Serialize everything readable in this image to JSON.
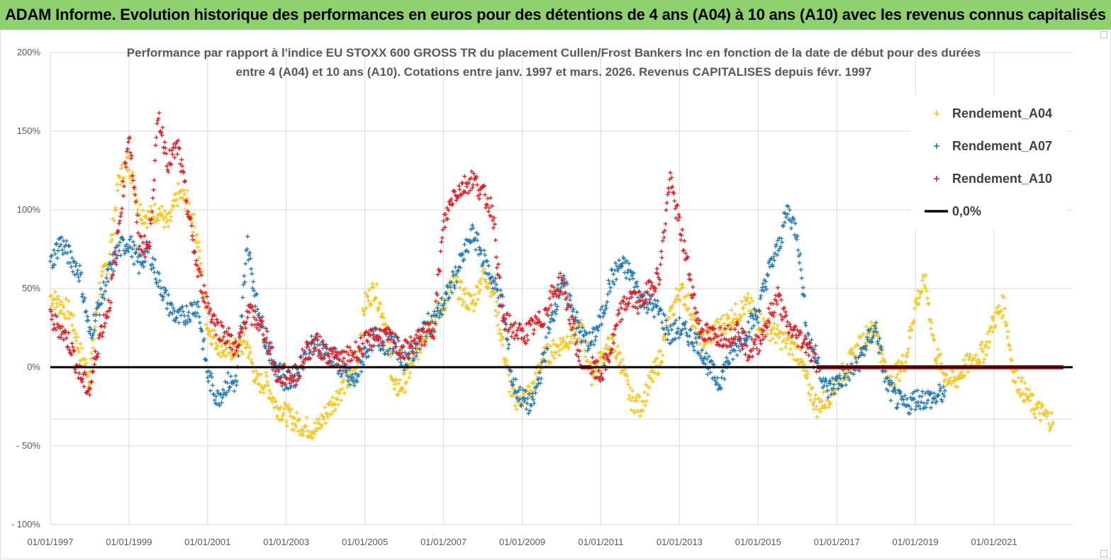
{
  "banner": {
    "title": "ADAM Informe. Evolution historique des performances en euros pour des détentions de 4 ans (A04) à 10 ans (A10) avec les revenus connus capitalisés"
  },
  "colors": {
    "banner_bg": "#8fd16f",
    "a04": "#f5c518",
    "a07": "#1f77b4",
    "a10": "#e8191e",
    "zero": "#000000",
    "grid": "#d9d9d9"
  },
  "chart_data": {
    "type": "scatter",
    "title_lines": [
      "Performance par rapport à l'indice EU STOXX 600 GROSS TR  du placement Cullen/Frost Bankers Inc en fonction de la date de début pour des durées",
      "entre 4 (A04) et 10 ans (A10). Cotations entre janv. 1997 et mars. 2026. Revenus CAPITALISES depuis févr. 1997"
    ],
    "ylim": [
      -100,
      200
    ],
    "y_ticks": [
      200,
      150,
      100,
      50,
      0,
      -50,
      -100
    ],
    "y_tick_labels": [
      "200%",
      "150%",
      "100%",
      "50%",
      "0%",
      "- 50%",
      "- 100%"
    ],
    "x_start_year": 1997.0,
    "x_end_year": 2023.0,
    "x_ticks": [
      1997,
      1999,
      2001,
      2003,
      2005,
      2007,
      2009,
      2011,
      2013,
      2015,
      2017,
      2019,
      2021
    ],
    "x_tick_labels": [
      "01/01/1997",
      "01/01/1999",
      "01/01/2001",
      "01/01/2003",
      "01/01/2005",
      "01/01/2007",
      "01/01/2009",
      "01/01/2011",
      "01/01/2013",
      "01/01/2015",
      "01/01/2017",
      "01/01/2019",
      "01/01/2021"
    ],
    "legend": [
      {
        "label": "Rendement_A04",
        "key": "a04"
      },
      {
        "label": "Rendement_A07",
        "key": "a07"
      },
      {
        "label": "Rendement_A10",
        "key": "a10"
      },
      {
        "label": "0,0%",
        "key": "zero"
      }
    ],
    "series": [
      {
        "name": "Rendement_A04",
        "key": "a04",
        "x": [
          1997.0,
          1997.25,
          1997.5,
          1997.75,
          1998.0,
          1998.25,
          1998.5,
          1998.75,
          1999.0,
          1999.25,
          1999.5,
          1999.75,
          2000.0,
          2000.25,
          2000.5,
          2000.75,
          2001.0,
          2001.25,
          2001.5,
          2001.75,
          2002.0,
          2002.25,
          2002.5,
          2002.75,
          2003.0,
          2003.25,
          2003.5,
          2003.75,
          2004.0,
          2004.25,
          2004.5,
          2004.75,
          2005.0,
          2005.25,
          2005.5,
          2005.75,
          2006.0,
          2006.25,
          2006.5,
          2006.75,
          2007.0,
          2007.25,
          2007.5,
          2007.75,
          2008.0,
          2008.25,
          2008.5,
          2008.75,
          2009.0,
          2009.25,
          2009.5,
          2009.75,
          2010.0,
          2010.25,
          2010.5,
          2010.75,
          2011.0,
          2011.25,
          2011.5,
          2011.75,
          2012.0,
          2012.25,
          2012.5,
          2012.75,
          2013.0,
          2013.25,
          2013.5,
          2013.75,
          2014.0,
          2014.25,
          2014.5,
          2014.75,
          2015.0,
          2015.25,
          2015.5,
          2015.75,
          2016.0,
          2016.25,
          2016.5,
          2016.75,
          2017.0,
          2017.25,
          2017.5,
          2017.75,
          2018.0,
          2018.25,
          2018.5,
          2018.75,
          2019.0,
          2019.25,
          2019.5,
          2019.75,
          2020.0,
          2020.25,
          2020.5,
          2020.75,
          2021.0,
          2021.25,
          2021.5,
          2021.75,
          2022.0,
          2022.25,
          2022.5
        ],
        "y": [
          45,
          40,
          35,
          10,
          -5,
          50,
          70,
          120,
          130,
          100,
          95,
          100,
          90,
          110,
          105,
          80,
          25,
          15,
          10,
          12,
          15,
          -10,
          -10,
          -25,
          -30,
          -35,
          -38,
          -40,
          -30,
          -20,
          -10,
          -5,
          40,
          50,
          30,
          -15,
          -10,
          5,
          20,
          30,
          40,
          55,
          45,
          40,
          60,
          50,
          15,
          -20,
          -20,
          -15,
          5,
          10,
          15,
          20,
          25,
          -5,
          5,
          15,
          5,
          -20,
          -25,
          -10,
          5,
          30,
          50,
          40,
          15,
          20,
          25,
          30,
          35,
          40,
          30,
          25,
          20,
          15,
          10,
          -10,
          -25,
          -20,
          -10,
          0,
          10,
          20,
          25,
          -5,
          -5,
          5,
          40,
          55,
          10,
          -5,
          -10,
          0,
          5,
          10,
          30,
          40,
          -5,
          -15,
          -25,
          -30,
          -35
        ]
      },
      {
        "name": "Rendement_A07",
        "key": "a07",
        "x": [
          1997.0,
          1997.25,
          1997.5,
          1997.75,
          1998.0,
          1998.25,
          1998.5,
          1998.75,
          1999.0,
          1999.25,
          1999.5,
          1999.75,
          2000.0,
          2000.25,
          2000.5,
          2000.75,
          2001.0,
          2001.25,
          2001.5,
          2001.75,
          2002.0,
          2002.25,
          2002.5,
          2002.75,
          2003.0,
          2003.25,
          2003.5,
          2003.75,
          2004.0,
          2004.25,
          2004.5,
          2004.75,
          2005.0,
          2005.25,
          2005.5,
          2005.75,
          2006.0,
          2006.25,
          2006.5,
          2006.75,
          2007.0,
          2007.25,
          2007.5,
          2007.75,
          2008.0,
          2008.25,
          2008.5,
          2008.75,
          2009.0,
          2009.25,
          2009.5,
          2009.75,
          2010.0,
          2010.25,
          2010.5,
          2010.75,
          2011.0,
          2011.25,
          2011.5,
          2011.75,
          2012.0,
          2012.25,
          2012.5,
          2012.75,
          2013.0,
          2013.25,
          2013.5,
          2013.75,
          2014.0,
          2014.25,
          2014.5,
          2014.75,
          2015.0,
          2015.25,
          2015.5,
          2015.75,
          2016.0,
          2016.25,
          2016.5,
          2016.75,
          2017.0,
          2017.25,
          2017.5,
          2017.75,
          2018.0,
          2018.25,
          2018.5,
          2018.75,
          2019.0,
          2019.25,
          2019.5,
          2019.75
        ],
        "y": [
          65,
          80,
          70,
          60,
          20,
          40,
          60,
          75,
          80,
          65,
          75,
          55,
          40,
          30,
          35,
          40,
          -5,
          -20,
          -10,
          -10,
          80,
          40,
          15,
          0,
          -10,
          -5,
          10,
          15,
          10,
          5,
          -5,
          -10,
          10,
          20,
          15,
          15,
          5,
          10,
          25,
          30,
          40,
          55,
          70,
          85,
          70,
          55,
          40,
          -10,
          -20,
          -25,
          0,
          30,
          55,
          40,
          20,
          15,
          30,
          55,
          65,
          60,
          45,
          40,
          35,
          20,
          25,
          20,
          15,
          0,
          -10,
          5,
          15,
          25,
          35,
          60,
          75,
          100,
          85,
          20,
          5,
          -15,
          -10,
          -5,
          0,
          15,
          25,
          -10,
          -20,
          -25,
          -20,
          -20,
          -20,
          -15
        ]
      },
      {
        "name": "Rendement_A10",
        "key": "a10",
        "x": [
          1997.0,
          1997.25,
          1997.5,
          1997.75,
          1998.0,
          1998.25,
          1998.5,
          1998.75,
          1999.0,
          1999.25,
          1999.5,
          1999.75,
          2000.0,
          2000.25,
          2000.5,
          2000.75,
          2001.0,
          2001.25,
          2001.5,
          2001.75,
          2002.0,
          2002.25,
          2002.5,
          2002.75,
          2003.0,
          2003.25,
          2003.5,
          2003.75,
          2004.0,
          2004.25,
          2004.5,
          2004.75,
          2005.0,
          2005.25,
          2005.5,
          2005.75,
          2006.0,
          2006.25,
          2006.5,
          2006.75,
          2007.0,
          2007.25,
          2007.5,
          2007.75,
          2008.0,
          2008.25,
          2008.5,
          2008.75,
          2009.0,
          2009.25,
          2009.5,
          2009.75,
          2010.0,
          2010.25,
          2010.5,
          2010.75,
          2011.0,
          2011.25,
          2011.5,
          2011.75,
          2012.0,
          2012.25,
          2012.5,
          2012.75,
          2013.0,
          2013.25,
          2013.5,
          2013.75,
          2014.0,
          2014.25,
          2014.5,
          2014.75,
          2015.0,
          2015.25,
          2015.5,
          2015.75,
          2016.0,
          2016.25,
          2016.5,
          2016.75,
          2017.0,
          2017.25,
          2017.5,
          2017.75,
          2018.0,
          2018.25,
          2018.5,
          2018.75,
          2019.0,
          2019.25,
          2019.5,
          2019.75,
          2020.0,
          2020.25,
          2020.5,
          2020.75,
          2021.0,
          2021.25,
          2021.5,
          2021.75,
          2022.0,
          2022.25,
          2022.5,
          2022.75
        ],
        "y": [
          30,
          25,
          15,
          -5,
          -15,
          20,
          40,
          90,
          150,
          80,
          75,
          160,
          130,
          140,
          100,
          60,
          40,
          25,
          20,
          10,
          35,
          30,
          20,
          -5,
          -5,
          -5,
          10,
          15,
          10,
          5,
          5,
          10,
          15,
          20,
          20,
          15,
          10,
          15,
          20,
          25,
          90,
          110,
          115,
          120,
          110,
          100,
          30,
          25,
          20,
          25,
          30,
          45,
          55,
          30,
          0,
          0,
          -5,
          10,
          35,
          45,
          40,
          50,
          60,
          120,
          90,
          60,
          25,
          20,
          20,
          20,
          25,
          10,
          15,
          30,
          45,
          25,
          20,
          15,
          0,
          0,
          0,
          0,
          0,
          0,
          0,
          0,
          0,
          0,
          0,
          0,
          0,
          0,
          0,
          0,
          0,
          0,
          0,
          0,
          0,
          0,
          0,
          0,
          0,
          0
        ]
      }
    ],
    "zero_line": 0
  }
}
